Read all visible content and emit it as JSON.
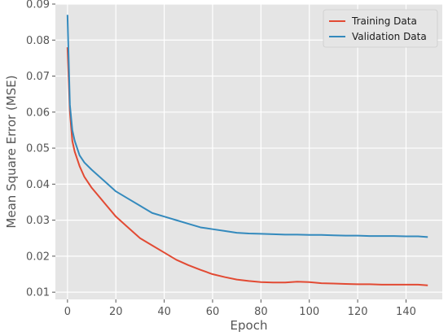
{
  "chart_data": {
    "type": "line",
    "xlabel": "Epoch",
    "ylabel": "Mean Square Error (MSE)",
    "xlim": [
      -5,
      155
    ],
    "ylim": [
      0.008,
      0.09
    ],
    "xticks": [
      "0",
      "20",
      "40",
      "60",
      "80",
      "100",
      "120",
      "140"
    ],
    "yticks": [
      "0.01",
      "0.02",
      "0.03",
      "0.04",
      "0.05",
      "0.06",
      "0.07",
      "0.08",
      "0.09"
    ],
    "grid": true,
    "legend_position": "top-right",
    "series": [
      {
        "name": "Training Data",
        "color": "#e24a33",
        "points": [
          [
            0,
            0.078
          ],
          [
            1,
            0.06
          ],
          [
            2,
            0.052
          ],
          [
            3,
            0.049
          ],
          [
            4,
            0.047
          ],
          [
            5,
            0.045
          ],
          [
            7,
            0.042
          ],
          [
            10,
            0.039
          ],
          [
            15,
            0.035
          ],
          [
            20,
            0.031
          ],
          [
            25,
            0.028
          ],
          [
            30,
            0.025
          ],
          [
            35,
            0.023
          ],
          [
            40,
            0.021
          ],
          [
            45,
            0.019
          ],
          [
            50,
            0.0175
          ],
          [
            55,
            0.0162
          ],
          [
            60,
            0.015
          ],
          [
            65,
            0.0142
          ],
          [
            70,
            0.0135
          ],
          [
            75,
            0.0131
          ],
          [
            80,
            0.0128
          ],
          [
            85,
            0.0127
          ],
          [
            90,
            0.0127
          ],
          [
            95,
            0.0129
          ],
          [
            100,
            0.0128
          ],
          [
            105,
            0.0125
          ],
          [
            110,
            0.0124
          ],
          [
            115,
            0.0123
          ],
          [
            120,
            0.0122
          ],
          [
            125,
            0.0122
          ],
          [
            130,
            0.0121
          ],
          [
            135,
            0.0121
          ],
          [
            140,
            0.0121
          ],
          [
            145,
            0.0121
          ],
          [
            149,
            0.0119
          ]
        ]
      },
      {
        "name": "Validation Data",
        "color": "#348abd",
        "points": [
          [
            0,
            0.087
          ],
          [
            1,
            0.062
          ],
          [
            2,
            0.055
          ],
          [
            3,
            0.052
          ],
          [
            4,
            0.05
          ],
          [
            5,
            0.048
          ],
          [
            7,
            0.046
          ],
          [
            10,
            0.044
          ],
          [
            15,
            0.041
          ],
          [
            20,
            0.038
          ],
          [
            25,
            0.036
          ],
          [
            30,
            0.034
          ],
          [
            35,
            0.032
          ],
          [
            40,
            0.031
          ],
          [
            45,
            0.03
          ],
          [
            50,
            0.029
          ],
          [
            55,
            0.028
          ],
          [
            60,
            0.0275
          ],
          [
            65,
            0.027
          ],
          [
            70,
            0.0265
          ],
          [
            75,
            0.0263
          ],
          [
            80,
            0.0262
          ],
          [
            85,
            0.0261
          ],
          [
            90,
            0.026
          ],
          [
            95,
            0.026
          ],
          [
            100,
            0.0259
          ],
          [
            105,
            0.0259
          ],
          [
            110,
            0.0258
          ],
          [
            115,
            0.0257
          ],
          [
            120,
            0.0257
          ],
          [
            125,
            0.0256
          ],
          [
            130,
            0.0256
          ],
          [
            135,
            0.0256
          ],
          [
            140,
            0.0255
          ],
          [
            145,
            0.0255
          ],
          [
            149,
            0.0253
          ]
        ]
      }
    ]
  }
}
